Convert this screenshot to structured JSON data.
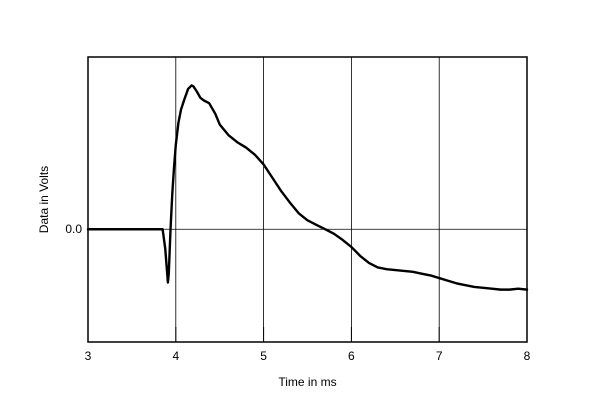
{
  "chart_data": {
    "type": "line",
    "title": "",
    "xlabel": "Time in ms",
    "ylabel": "Data in Volts",
    "xlim": [
      3,
      8
    ],
    "ylim": [
      -1.27,
      1.94
    ],
    "x_ticks": [
      {
        "value": 3,
        "label": "3"
      },
      {
        "value": 4,
        "label": "4"
      },
      {
        "value": 5,
        "label": "5"
      },
      {
        "value": 6,
        "label": "6"
      },
      {
        "value": 7,
        "label": "7"
      },
      {
        "value": 8,
        "label": "8"
      }
    ],
    "y_ticks": [
      {
        "value": 0,
        "label": "0.0"
      }
    ],
    "grid": true,
    "series": [
      {
        "x": [
          3.0,
          3.5,
          3.85,
          3.88,
          3.91,
          3.92,
          3.94,
          3.96,
          3.98,
          4.0,
          4.03,
          4.06,
          4.1,
          4.14,
          4.18,
          4.2,
          4.24,
          4.28,
          4.32,
          4.38,
          4.45,
          4.5,
          4.6,
          4.7,
          4.8,
          4.9,
          5.0,
          5.1,
          5.2,
          5.3,
          5.4,
          5.5,
          5.6,
          5.7,
          5.8,
          5.9,
          6.0,
          6.1,
          6.2,
          6.3,
          6.4,
          6.5,
          6.6,
          6.7,
          6.8,
          6.9,
          7.0,
          7.1,
          7.2,
          7.3,
          7.4,
          7.5,
          7.6,
          7.7,
          7.8,
          7.9,
          8.0
        ],
        "y": [
          0.0,
          0.0,
          0.0,
          -0.22,
          -0.6,
          -0.5,
          0.0,
          0.4,
          0.7,
          0.95,
          1.2,
          1.35,
          1.47,
          1.58,
          1.62,
          1.61,
          1.55,
          1.48,
          1.45,
          1.42,
          1.3,
          1.18,
          1.06,
          0.98,
          0.92,
          0.84,
          0.73,
          0.58,
          0.43,
          0.3,
          0.18,
          0.1,
          0.05,
          0.0,
          -0.05,
          -0.12,
          -0.2,
          -0.3,
          -0.38,
          -0.43,
          -0.45,
          -0.46,
          -0.47,
          -0.48,
          -0.5,
          -0.52,
          -0.55,
          -0.58,
          -0.61,
          -0.63,
          -0.65,
          -0.66,
          -0.67,
          -0.68,
          -0.68,
          -0.67,
          -0.68
        ]
      }
    ]
  }
}
